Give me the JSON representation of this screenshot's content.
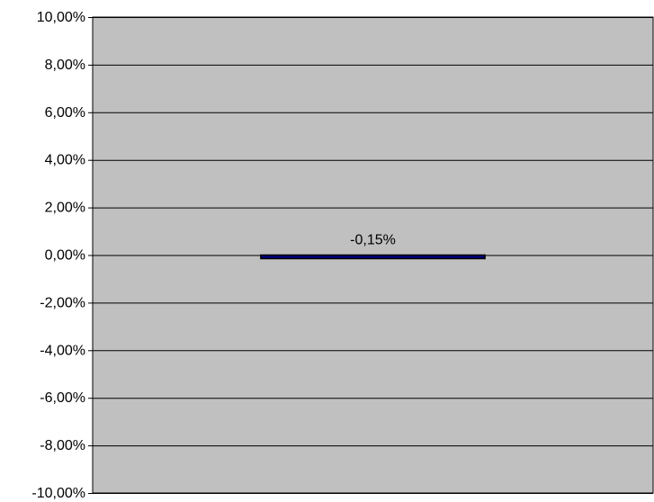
{
  "chart_data": {
    "type": "bar",
    "categories": [
      ""
    ],
    "values": [
      -0.15
    ],
    "data_labels": [
      "-0,15%"
    ],
    "ylim": [
      -10,
      10
    ],
    "yticks": [
      10,
      8,
      6,
      4,
      2,
      0,
      -2,
      -4,
      -6,
      -8,
      -10
    ],
    "ytick_labels": [
      "10,00%",
      "8,00%",
      "6,00%",
      "4,00%",
      "2,00%",
      "0,00%",
      "-2,00%",
      "-4,00%",
      "-6,00%",
      "-8,00%",
      "-10,00%"
    ],
    "grid": true,
    "legend": "none",
    "colors": {
      "plot_background": "#c0c0c0",
      "bar_fill": "#000080",
      "bar_stroke": "#000000",
      "gridline": "#000000"
    }
  }
}
